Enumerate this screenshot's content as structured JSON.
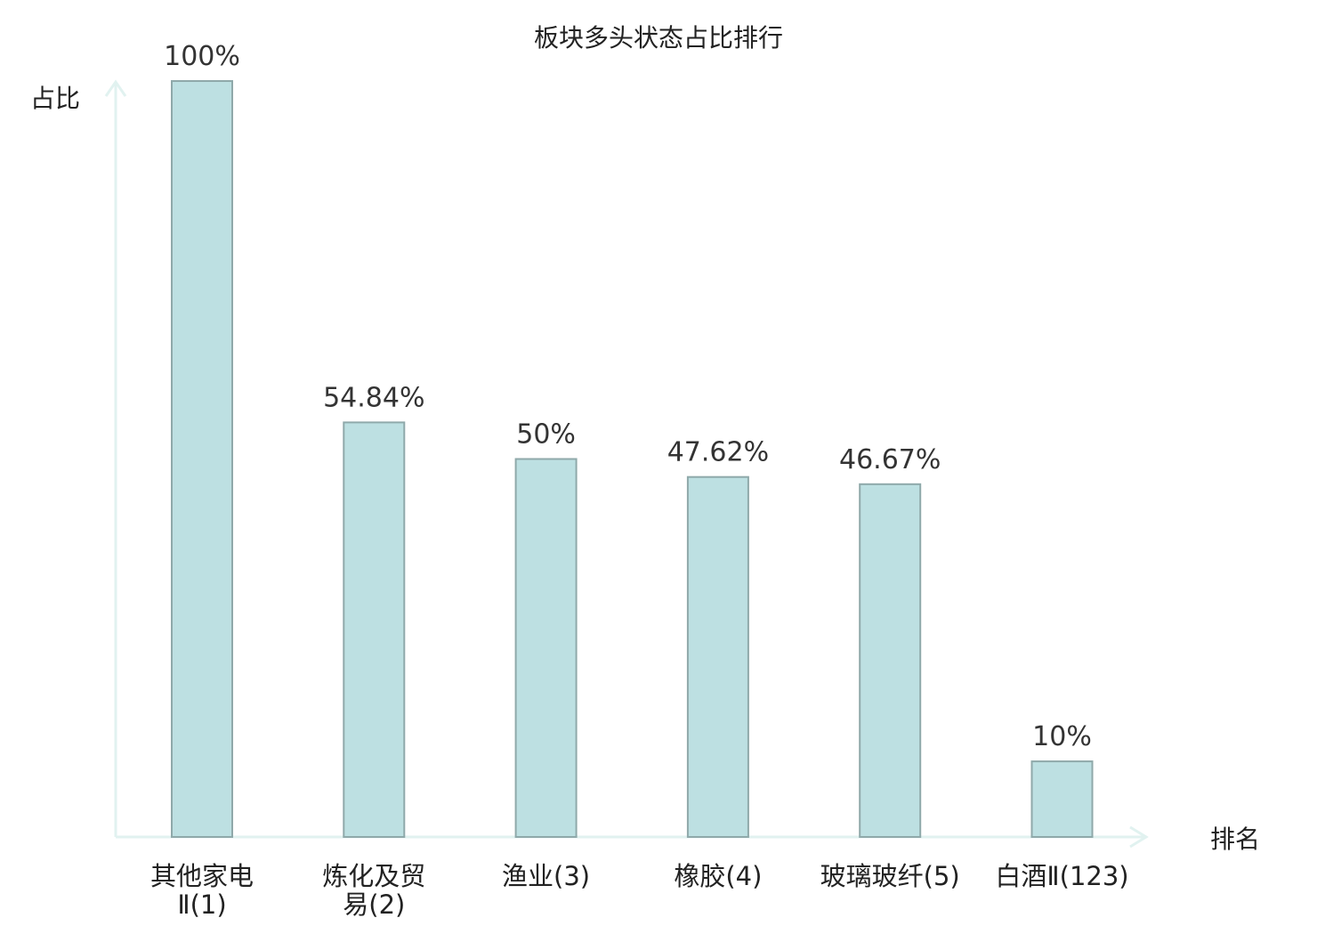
{
  "chart_data": {
    "type": "bar",
    "title": "板块多头状态占比排行",
    "ylabel": "占比",
    "xlabel": "排名",
    "ylim": [
      0,
      100
    ],
    "grid": false,
    "categories": [
      [
        "其他家电",
        "Ⅱ(1)"
      ],
      [
        "炼化及贸",
        "易(2)"
      ],
      [
        "渔业(3)"
      ],
      [
        "橡胶(4)"
      ],
      [
        "玻璃玻纤(5)"
      ],
      [
        "白酒Ⅱ(123)"
      ]
    ],
    "values": [
      100,
      54.84,
      50,
      47.62,
      46.67,
      10
    ],
    "value_labels": [
      "100%",
      "54.84%",
      "50%",
      "47.62%",
      "46.67%",
      "10%"
    ],
    "highlight_index": 5
  },
  "colors": {
    "bar_fill": "#bde0e2",
    "bar_stroke": "#8fa9aa",
    "axis": "#e1f2f0",
    "text": "#222222",
    "highlight_text": "#e02020"
  }
}
